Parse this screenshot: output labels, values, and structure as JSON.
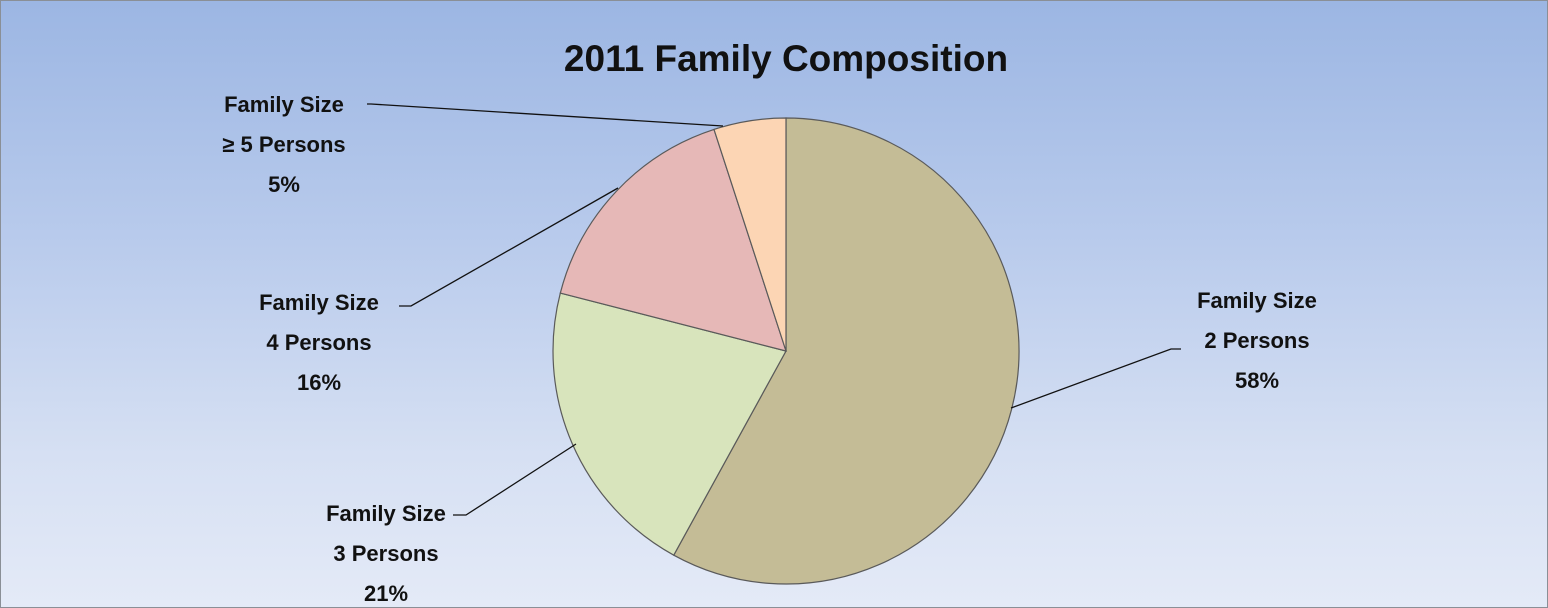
{
  "chart_data": {
    "type": "pie",
    "title": "2011 Family Composition",
    "slices": [
      {
        "label_line1": "Family Size",
        "label_line2": "2 Persons",
        "value": 58,
        "value_label": "58%",
        "color": "#c4bc96"
      },
      {
        "label_line1": "Family Size",
        "label_line2": "3 Persons",
        "value": 21,
        "value_label": "21%",
        "color": "#d8e4bc"
      },
      {
        "label_line1": "Family Size",
        "label_line2": "4 Persons",
        "value": 16,
        "value_label": "16%",
        "color": "#e6b8b7"
      },
      {
        "label_line1": "Family Size",
        "label_line2": "≥ 5 Persons",
        "value": 5,
        "value_label": "5%",
        "color": "#fcd5b4"
      }
    ],
    "start_angle": "12 o'clock",
    "direction": "clockwise",
    "background": [
      "#9cb6e3",
      "#e4eaf7"
    ]
  }
}
